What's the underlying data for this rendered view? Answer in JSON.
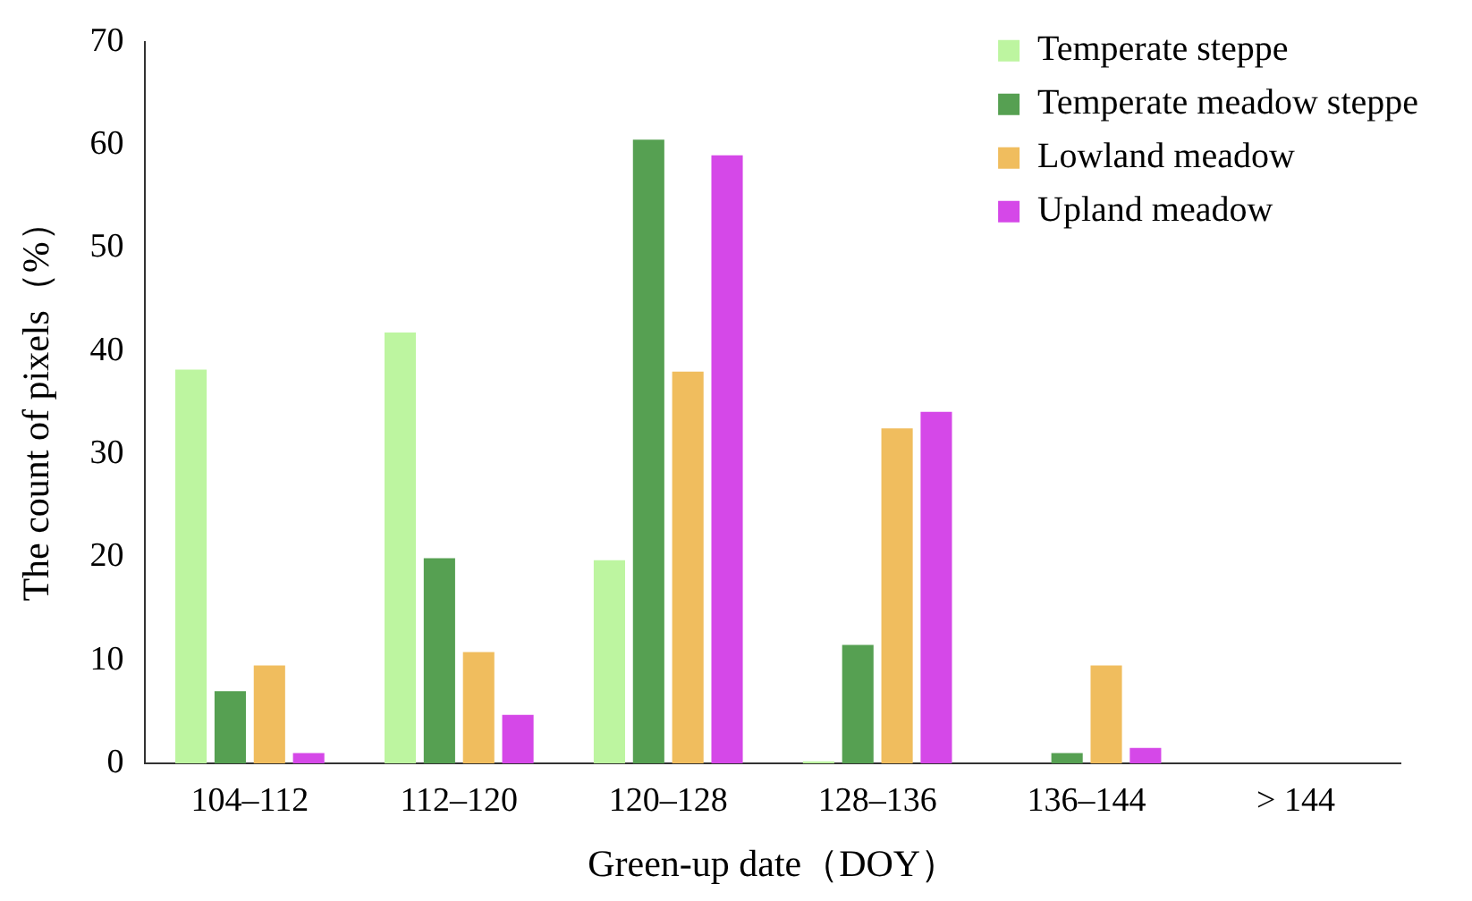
{
  "chart_data": {
    "type": "bar",
    "xlabel": "Green-up date（DOY）",
    "ylabel": "The count of pixels（%）",
    "categories": [
      "104–112",
      "112–120",
      "120–128",
      "128–136",
      "136–144",
      "> 144"
    ],
    "series": [
      {
        "name": "Temperate steppe",
        "color": "#bdf5a0",
        "values": [
          38.2,
          41.8,
          19.7,
          0.2,
          0,
          0
        ]
      },
      {
        "name": "Temperate meadow steppe",
        "color": "#56a052",
        "values": [
          7,
          19.9,
          60.5,
          11.5,
          1,
          0
        ]
      },
      {
        "name": "Lowland meadow",
        "color": "#f0bd5e",
        "values": [
          9.5,
          10.8,
          38,
          32.5,
          9.5,
          0
        ]
      },
      {
        "name": "Upland meadow",
        "color": "#d548e8",
        "values": [
          1,
          4.7,
          59,
          34.1,
          1.5,
          0
        ]
      }
    ],
    "ylim": [
      0,
      70
    ],
    "yticks": [
      0,
      10,
      20,
      30,
      40,
      50,
      60,
      70
    ],
    "grid": false,
    "legend": "top right"
  }
}
